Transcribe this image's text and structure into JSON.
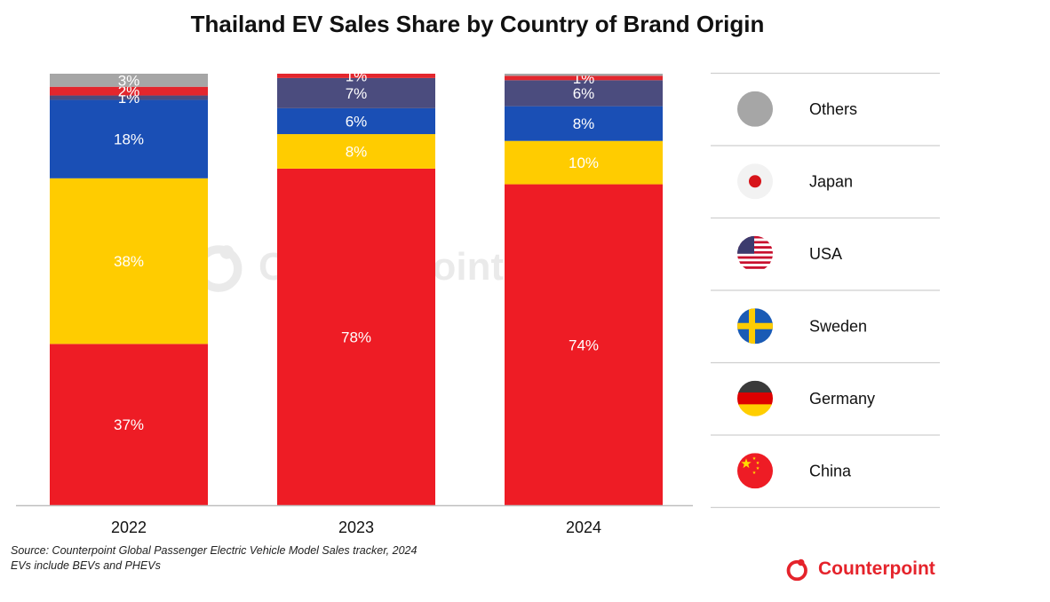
{
  "chart_data": {
    "type": "bar",
    "stacked": true,
    "title": "Thailand EV Sales Share by Country of Brand Origin",
    "categories": [
      "2022",
      "2023",
      "2024"
    ],
    "ylim": [
      0,
      100
    ],
    "grid": false,
    "legend_position": "right",
    "series": [
      {
        "name": "China",
        "color": "#ee1c25",
        "values": [
          37,
          78,
          74
        ],
        "labels": [
          "37%",
          "78%",
          "74%"
        ]
      },
      {
        "name": "Germany",
        "color": "#ffcc00",
        "values": [
          38,
          8,
          10
        ],
        "labels": [
          "38%",
          "8%",
          "10%"
        ]
      },
      {
        "name": "Sweden",
        "color": "#1a4fb5",
        "values": [
          18,
          6,
          8
        ],
        "labels": [
          "18%",
          "6%",
          "8%"
        ]
      },
      {
        "name": "USA",
        "color": "#4b4c7e",
        "values": [
          1,
          7,
          6
        ],
        "labels": [
          "1%",
          "7%",
          "6%"
        ]
      },
      {
        "name": "Japan",
        "color": "#e3262d",
        "values": [
          2,
          1,
          1
        ],
        "labels": [
          "2%",
          "1%",
          "1%"
        ]
      },
      {
        "name": "Others",
        "color": "#a6a6a6",
        "values": [
          3,
          0,
          0.5
        ],
        "labels": [
          "3%",
          "",
          ""
        ]
      }
    ],
    "legend_order": [
      "Others",
      "Japan",
      "USA",
      "Sweden",
      "Germany",
      "China"
    ],
    "legend_icons": {
      "Others": "gray-circle-icon",
      "Japan": "japan-flag-icon",
      "USA": "usa-flag-icon",
      "Sweden": "sweden-flag-icon",
      "Germany": "germany-flag-icon",
      "China": "china-flag-icon"
    }
  },
  "footer": {
    "source_line1": "Source: Counterpoint Global Passenger Electric Vehicle Model Sales tracker, 2024",
    "source_line2": "EVs include BEVs and PHEVs",
    "brand": "Counterpoint"
  },
  "watermark": "Counterpoint",
  "colors": {
    "brand_red": "#e5232b"
  }
}
